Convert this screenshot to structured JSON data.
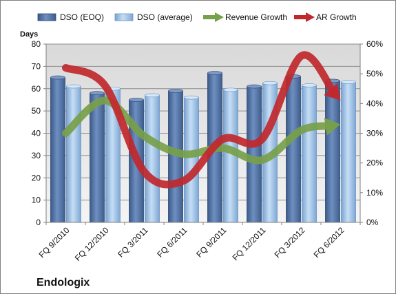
{
  "company": "Endologix",
  "chart_data": {
    "type": "bar",
    "ylabel": "Days",
    "categories": [
      "FQ 9/2010",
      "FQ 12/2010",
      "FQ 3/2011",
      "FQ 6/2011",
      "FQ 9/2011",
      "FQ 12/2011",
      "FQ 3/2012",
      "FQ 6/2012"
    ],
    "y_ticks": [
      "0",
      "10",
      "20",
      "30",
      "40",
      "50",
      "60",
      "70",
      "80"
    ],
    "y2_ticks": [
      "0%",
      "10%",
      "20%",
      "30%",
      "40%",
      "50%",
      "60%"
    ],
    "ylim": [
      0,
      80
    ],
    "y2lim": [
      0,
      60
    ],
    "grid": true,
    "legend_position": "top",
    "series": [
      {
        "name": "DSO (EOQ)",
        "type": "bar",
        "axis": "left",
        "color": "#4f6f9f",
        "values": [
          65,
          58,
          55,
          59,
          67,
          61,
          65.5,
          63.5
        ]
      },
      {
        "name": "DSO (average)",
        "type": "bar",
        "axis": "left",
        "color": "#9dc3e6",
        "values": [
          61,
          60,
          57,
          56,
          59.5,
          62.5,
          61.5,
          63
        ]
      },
      {
        "name": "Revenue Growth",
        "type": "line",
        "axis": "right",
        "color": "#77a04a",
        "values": [
          30,
          41,
          29,
          23,
          25,
          21,
          31,
          33
        ]
      },
      {
        "name": "AR Growth",
        "type": "line",
        "axis": "right",
        "color": "#c0282d",
        "values": [
          52,
          46,
          17,
          14,
          28,
          28,
          56,
          41
        ]
      }
    ]
  }
}
